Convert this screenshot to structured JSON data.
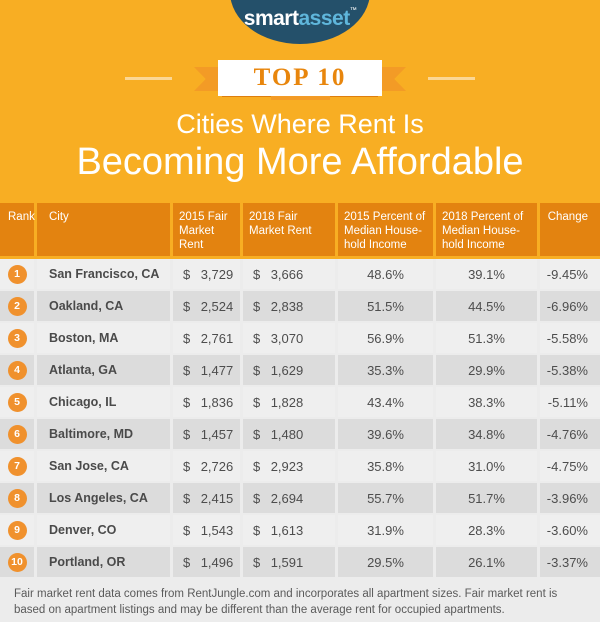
{
  "colors": {
    "page_orange": "#F8AE23",
    "table_header_orange": "#E38310",
    "ribbon_orange": "#F39B26",
    "ribbon_fold_orange": "#DE7E0D",
    "badge_text_orange": "#E8860D",
    "rank_circle_orange": "#F0912D",
    "logo_navy": "#24506A",
    "logo_light_blue": "#5FB6DB",
    "row_light_gray": "#EFEFEF",
    "row_dark_gray": "#DCDCDC",
    "section_gray": "#ECECEC",
    "body_text_gray": "#4A4A4A"
  },
  "logo": {
    "part1": "smart",
    "part2": "asset",
    "tm": "™"
  },
  "badge": {
    "label": "TOP 10"
  },
  "title": {
    "line1": "Cities Where Rent Is",
    "line2": "Becoming More Affordable"
  },
  "chart_data": {
    "type": "table",
    "title": "Top 10 Cities Where Rent Is Becoming More Affordable",
    "currency": "$",
    "columns": [
      "Rank",
      "City",
      "2015 Fair Market Rent",
      "2018 Fair Market Rent",
      "2015 Percent of Median House-hold Income",
      "2018 Percent of Median House-hold Income",
      "Change"
    ],
    "rows": [
      {
        "rank": "1",
        "city": "San Francisco, CA",
        "rent_2015": "3,729",
        "rent_2018": "3,666",
        "pct_2015": "48.6%",
        "pct_2018": "39.1%",
        "change": "-9.45%"
      },
      {
        "rank": "2",
        "city": "Oakland, CA",
        "rent_2015": "2,524",
        "rent_2018": "2,838",
        "pct_2015": "51.5%",
        "pct_2018": "44.5%",
        "change": "-6.96%"
      },
      {
        "rank": "3",
        "city": "Boston, MA",
        "rent_2015": "2,761",
        "rent_2018": "3,070",
        "pct_2015": "56.9%",
        "pct_2018": "51.3%",
        "change": "-5.58%"
      },
      {
        "rank": "4",
        "city": "Atlanta, GA",
        "rent_2015": "1,477",
        "rent_2018": "1,629",
        "pct_2015": "35.3%",
        "pct_2018": "29.9%",
        "change": "-5.38%"
      },
      {
        "rank": "5",
        "city": "Chicago, IL",
        "rent_2015": "1,836",
        "rent_2018": "1,828",
        "pct_2015": "43.4%",
        "pct_2018": "38.3%",
        "change": "-5.11%"
      },
      {
        "rank": "6",
        "city": "Baltimore, MD",
        "rent_2015": "1,457",
        "rent_2018": "1,480",
        "pct_2015": "39.6%",
        "pct_2018": "34.8%",
        "change": "-4.76%"
      },
      {
        "rank": "7",
        "city": "San Jose, CA",
        "rent_2015": "2,726",
        "rent_2018": "2,923",
        "pct_2015": "35.8%",
        "pct_2018": "31.0%",
        "change": "-4.75%"
      },
      {
        "rank": "8",
        "city": "Los Angeles, CA",
        "rent_2015": "2,415",
        "rent_2018": "2,694",
        "pct_2015": "55.7%",
        "pct_2018": "51.7%",
        "change": "-3.96%"
      },
      {
        "rank": "9",
        "city": "Denver, CO",
        "rent_2015": "1,543",
        "rent_2018": "1,613",
        "pct_2015": "31.9%",
        "pct_2018": "28.3%",
        "change": "-3.60%"
      },
      {
        "rank": "10",
        "city": "Portland, OR",
        "rent_2015": "1,496",
        "rent_2018": "1,591",
        "pct_2015": "29.5%",
        "pct_2018": "26.1%",
        "change": "-3.37%"
      }
    ]
  },
  "footer": {
    "text": "Fair market rent data comes from RentJungle.com and incorporates all apartment sizes. Fair market rent is based on apartment listings and may be different than the average rent for occupied apartments."
  }
}
